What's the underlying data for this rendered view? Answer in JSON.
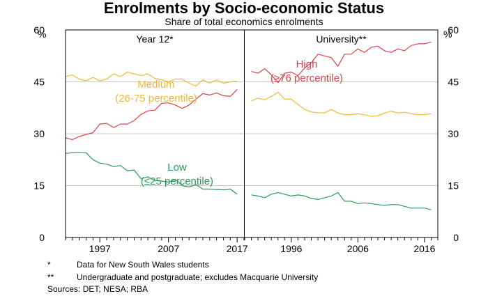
{
  "chart_data": {
    "type": "line",
    "title": "Enrolments by Socio-economic Status",
    "subtitle": "Share of total economics enrolments",
    "y_unit_left": "%",
    "y_unit_right": "%",
    "ylim": [
      0,
      60
    ],
    "yticks": [
      "0",
      "15",
      "30",
      "45",
      "60"
    ],
    "grid": true,
    "colors": {
      "high": "#d9434a",
      "medium": "#f5b72f",
      "low": "#2f9a56"
    },
    "panels": [
      {
        "title": "Year 12*",
        "xlim": [
          1992,
          2018
        ],
        "xticks": [
          1997,
          2007,
          2017
        ],
        "series": [
          {
            "name": "Medium",
            "name_line2": "(26-75 percentile)",
            "color": "#f5b72f",
            "x": [
              1992,
              1993,
              1994,
              1995,
              1996,
              1997,
              1998,
              1999,
              2000,
              2001,
              2002,
              2003,
              2004,
              2005,
              2006,
              2007,
              2008,
              2009,
              2010,
              2011,
              2012,
              2013,
              2014,
              2015,
              2016,
              2017
            ],
            "y": [
              46.5,
              47.0,
              45.8,
              45.3,
              46.3,
              45.3,
              45.8,
              47.3,
              46.5,
              47.8,
              47.3,
              46.8,
              47.3,
              46.0,
              45.6,
              45.0,
              45.8,
              45.8,
              44.6,
              43.8,
              45.6,
              44.6,
              45.6,
              44.6,
              45.0,
              45.2
            ]
          },
          {
            "name": "High",
            "color": "#d9434a",
            "x": [
              1992,
              1993,
              1994,
              1995,
              1996,
              1997,
              1998,
              1999,
              2000,
              2001,
              2002,
              2003,
              2004,
              2005,
              2006,
              2007,
              2008,
              2009,
              2010,
              2011,
              2012,
              2013,
              2014,
              2015,
              2016,
              2017
            ],
            "y": [
              28.8,
              28.3,
              29.2,
              29.8,
              30.3,
              32.8,
              33.0,
              31.8,
              32.8,
              32.8,
              33.8,
              35.6,
              36.6,
              36.8,
              38.8,
              38.9,
              38.3,
              37.3,
              38.3,
              40.0,
              41.6,
              41.2,
              41.8,
              41.0,
              40.8,
              42.8
            ]
          },
          {
            "name": "Low",
            "name_line2": "(≤25 percentile)",
            "color": "#2f9a56",
            "x": [
              1992,
              1993,
              1994,
              1995,
              1996,
              1997,
              1998,
              1999,
              2000,
              2001,
              2002,
              2003,
              2004,
              2005,
              2006,
              2007,
              2008,
              2009,
              2010,
              2011,
              2012,
              2013,
              2014,
              2015,
              2016,
              2017
            ],
            "y": [
              24.3,
              24.5,
              24.6,
              24.5,
              22.5,
              21.5,
              21.2,
              20.5,
              20.8,
              19.3,
              19.5,
              17.0,
              17.5,
              16.5,
              16.3,
              16.0,
              16.8,
              15.0,
              14.6,
              15.3,
              14.0,
              14.0,
              13.9,
              13.8,
              14.0,
              12.5
            ]
          }
        ]
      },
      {
        "title": "University**",
        "xlim": [
          1989,
          2018
        ],
        "xticks": [
          1996,
          2006,
          2016
        ],
        "series": [
          {
            "name": "High",
            "name_line2": "(≥76 percentile)",
            "color": "#d9434a",
            "x": [
              1990,
              1991,
              1992,
              1993,
              1994,
              1995,
              1996,
              1997,
              1998,
              1999,
              2000,
              2001,
              2002,
              2003,
              2004,
              2005,
              2006,
              2007,
              2008,
              2009,
              2010,
              2011,
              2012,
              2013,
              2014,
              2015,
              2016,
              2017
            ],
            "y": [
              48.0,
              47.5,
              48.8,
              47.0,
              44.8,
              47.5,
              47.8,
              46.8,
              49.0,
              50.5,
              53.0,
              52.5,
              52.0,
              49.5,
              53.0,
              53.0,
              54.5,
              53.5,
              55.0,
              55.3,
              54.0,
              53.5,
              54.5,
              54.0,
              55.5,
              56.0,
              56.0,
              56.5
            ]
          },
          {
            "name": "Medium",
            "color": "#f5b72f",
            "x": [
              1990,
              1991,
              1992,
              1993,
              1994,
              1995,
              1996,
              1997,
              1998,
              1999,
              2000,
              2001,
              2002,
              2003,
              2004,
              2005,
              2006,
              2007,
              2008,
              2009,
              2010,
              2011,
              2012,
              2013,
              2014,
              2015,
              2016,
              2017
            ],
            "y": [
              39.5,
              40.3,
              39.8,
              40.8,
              42.0,
              40.0,
              40.0,
              38.5,
              37.0,
              36.3,
              36.0,
              36.0,
              37.0,
              36.0,
              35.5,
              35.5,
              35.8,
              35.5,
              35.0,
              35.2,
              36.0,
              36.5,
              36.0,
              36.2,
              35.8,
              35.5,
              35.5,
              35.8
            ]
          },
          {
            "name": "Low",
            "color": "#2f9a56",
            "x": [
              1990,
              1991,
              1992,
              1993,
              1994,
              1995,
              1996,
              1997,
              1998,
              1999,
              2000,
              2001,
              2002,
              2003,
              2004,
              2005,
              2006,
              2007,
              2008,
              2009,
              2010,
              2011,
              2012,
              2013,
              2014,
              2015,
              2016,
              2017
            ],
            "y": [
              12.3,
              12.0,
              11.5,
              12.5,
              13.0,
              12.5,
              12.0,
              12.3,
              12.0,
              11.3,
              11.0,
              11.5,
              12.0,
              13.0,
              10.5,
              10.5,
              9.8,
              10.0,
              9.8,
              9.5,
              9.3,
              9.5,
              9.5,
              9.0,
              8.5,
              8.5,
              8.5,
              8.0
            ]
          }
        ]
      }
    ]
  },
  "notes": [
    {
      "mark": "*",
      "text": "Data for New South Wales students"
    },
    {
      "mark": "**",
      "text": "Undergraduate and postgraduate; excludes Macquarie University"
    }
  ],
  "sources": "Sources:  DET; NESA; RBA"
}
